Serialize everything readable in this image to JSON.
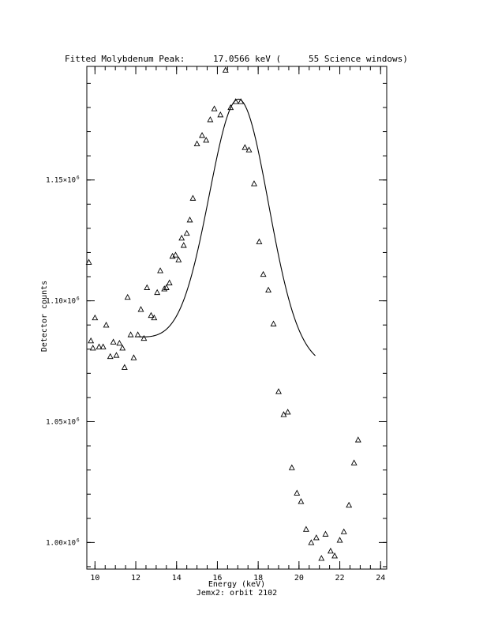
{
  "chart_data": {
    "type": "scatter",
    "title_parts": [
      "Fitted Molybdenum Peak:",
      "17.0566 keV (",
      "55 Science windows)"
    ],
    "xlabel": "Energy (keV)",
    "ylabel": "Detector counts",
    "footer": "Jemx2: orbit 2102",
    "xlim": [
      9.6,
      24.3
    ],
    "ylim": [
      989000,
      1197000
    ],
    "x_ticks": [
      10,
      12,
      14,
      16,
      18,
      20,
      22,
      24
    ],
    "y_ticks": [
      {
        "value": 1000000,
        "mantissa": "1.00×10",
        "exp": "6"
      },
      {
        "value": 1050000,
        "mantissa": "1.05×10",
        "exp": "6"
      },
      {
        "value": 1100000,
        "mantissa": "1.10×10",
        "exp": "6"
      },
      {
        "value": 1150000,
        "mantissa": "1.15×10",
        "exp": "6"
      }
    ],
    "x_minor_step": 0.5,
    "y_minor_step": 10000,
    "series": [
      {
        "marker": "triangle",
        "points": [
          [
            9.7,
            1116000
          ],
          [
            9.8,
            1083500
          ],
          [
            9.9,
            1080500
          ],
          [
            10.0,
            1093000
          ],
          [
            10.2,
            1081000
          ],
          [
            10.4,
            1081000
          ],
          [
            10.55,
            1090000
          ],
          [
            10.75,
            1077000
          ],
          [
            10.9,
            1083000
          ],
          [
            11.05,
            1077500
          ],
          [
            11.2,
            1082500
          ],
          [
            11.35,
            1080500
          ],
          [
            11.45,
            1072500
          ],
          [
            11.6,
            1101500
          ],
          [
            11.75,
            1086000
          ],
          [
            11.9,
            1076500
          ],
          [
            12.1,
            1086000
          ],
          [
            12.25,
            1096500
          ],
          [
            12.4,
            1084500
          ],
          [
            12.55,
            1105500
          ],
          [
            12.75,
            1094000
          ],
          [
            12.9,
            1093000
          ],
          [
            13.05,
            1103500
          ],
          [
            13.2,
            1112500
          ],
          [
            13.4,
            1105000
          ],
          [
            13.5,
            1105500
          ],
          [
            13.65,
            1107500
          ],
          [
            13.8,
            1118500
          ],
          [
            13.95,
            1119000
          ],
          [
            14.1,
            1117000
          ],
          [
            14.25,
            1126000
          ],
          [
            14.35,
            1123000
          ],
          [
            14.5,
            1128000
          ],
          [
            14.65,
            1133500
          ],
          [
            14.8,
            1142500
          ],
          [
            15.0,
            1165000
          ],
          [
            15.25,
            1168500
          ],
          [
            15.45,
            1166500
          ],
          [
            15.65,
            1175000
          ],
          [
            15.85,
            1179500
          ],
          [
            16.15,
            1177000
          ],
          [
            16.4,
            1195500
          ],
          [
            16.65,
            1180000
          ],
          [
            16.9,
            1182500
          ],
          [
            17.15,
            1182500
          ],
          [
            17.35,
            1163500
          ],
          [
            17.55,
            1162500
          ],
          [
            17.8,
            1148500
          ],
          [
            18.05,
            1124500
          ],
          [
            18.25,
            1111000
          ],
          [
            18.5,
            1104500
          ],
          [
            18.75,
            1090500
          ],
          [
            19.0,
            1062500
          ],
          [
            19.25,
            1053000
          ],
          [
            19.45,
            1054000
          ],
          [
            19.65,
            1031000
          ],
          [
            19.9,
            1020500
          ],
          [
            20.1,
            1017000
          ],
          [
            20.35,
            1005500
          ],
          [
            20.6,
            1000000
          ],
          [
            20.85,
            1002000
          ],
          [
            21.1,
            993500
          ],
          [
            21.3,
            1003500
          ],
          [
            21.55,
            996500
          ],
          [
            21.75,
            994500
          ],
          [
            22.0,
            1001000
          ],
          [
            22.2,
            1004500
          ],
          [
            22.45,
            1015500
          ],
          [
            22.7,
            1033000
          ],
          [
            22.9,
            1042500
          ]
        ]
      }
    ],
    "fit_curve": {
      "type": "gaussian_plus_linear",
      "x_range": [
        12.1,
        20.8
      ],
      "amplitude": 105000,
      "center": 17.0566,
      "sigma": 1.45,
      "baseline_intercept": 1085000,
      "baseline_slope": -1300,
      "baseline_x0": 12
    }
  }
}
